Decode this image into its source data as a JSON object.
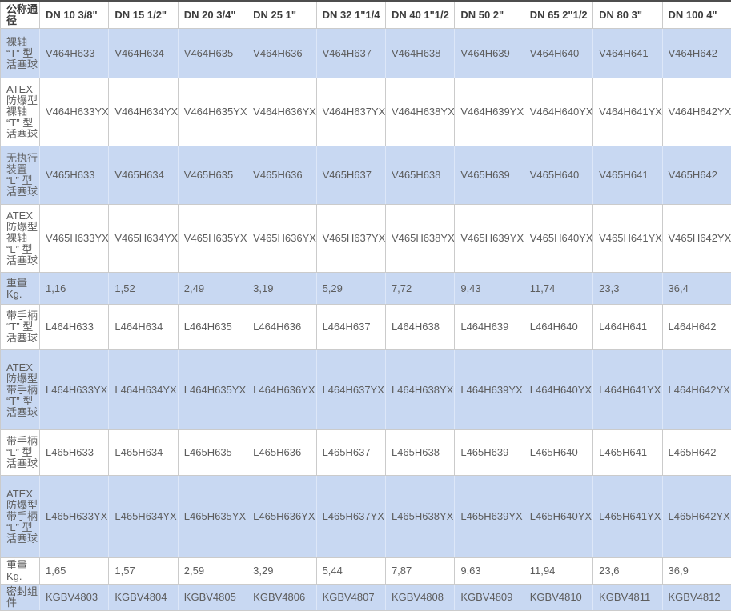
{
  "table": {
    "corner_header": "公称通径",
    "columns": [
      "DN 10 3/8\"",
      "DN 15  1/2\"",
      "DN 20  3/4\"",
      "DN 25 1\"",
      "DN 32 1\"1/4",
      "DN 40 1\"1/2",
      "DN 50  2\"",
      "DN 65 2\"1/2",
      "DN 80 3\"",
      "DN 100 4\""
    ],
    "rows": [
      {
        "label": "裸轴 “T” 型活塞球",
        "shaded": true,
        "values": [
          "V464H633",
          "V464H634",
          "V464H635",
          "V464H636",
          "V464H637",
          "V464H638",
          "V464H639",
          "V464H640",
          "V464H641",
          "V464H642"
        ]
      },
      {
        "label": "ATEX防爆型裸轴 “T” 型活塞球",
        "shaded": false,
        "values": [
          "V464H633YX",
          "V464H634YX",
          "V464H635YX",
          "V464H636YX",
          "V464H637YX",
          "V464H638YX",
          "V464H639YX",
          "V464H640YX",
          "V464H641YX",
          "V464H642YX"
        ]
      },
      {
        "label": "无执行装置 “L” 型活塞球",
        "shaded": true,
        "values": [
          "V465H633",
          "V465H634",
          "V465H635",
          "V465H636",
          "V465H637",
          "V465H638",
          "V465H639",
          "V465H640",
          "V465H641",
          "V465H642"
        ]
      },
      {
        "label": "ATEX防爆型裸轴 “L” 型活塞球",
        "shaded": false,
        "values": [
          "V465H633YX",
          "V465H634YX",
          "V465H635YX",
          "V465H636YX",
          "V465H637YX",
          "V465H638YX",
          "V465H639YX",
          "V465H640YX",
          "V465H641YX",
          "V465H642YX"
        ]
      },
      {
        "label": "重量 Kg.",
        "shaded": true,
        "values": [
          "1,16",
          "1,52",
          "2,49",
          "3,19",
          "5,29",
          "7,72",
          "9,43",
          "11,74",
          "23,3",
          "36,4"
        ]
      },
      {
        "label": "带手柄 “T” 型活塞球",
        "shaded": false,
        "values": [
          "L464H633",
          "L464H634",
          "L464H635",
          "L464H636",
          "L464H637",
          "L464H638",
          "L464H639",
          "L464H640",
          "L464H641",
          "L464H642"
        ]
      },
      {
        "label": "ATEX防爆型带手柄 “T” 型活塞球",
        "shaded": true,
        "values": [
          "L464H633YX",
          "L464H634YX",
          "L464H635YX",
          "L464H636YX",
          "L464H637YX",
          "L464H638YX",
          "L464H639YX",
          "L464H640YX",
          "L464H641YX",
          "L464H642YX"
        ]
      },
      {
        "label": "带手柄 “L” 型活塞球",
        "shaded": false,
        "values": [
          "L465H633",
          "L465H634",
          "L465H635",
          "L465H636",
          "L465H637",
          "L465H638",
          "L465H639",
          "L465H640",
          "L465H641",
          "L465H642"
        ]
      },
      {
        "label": "ATEX防爆型带手柄 “L” 型活塞球",
        "shaded": true,
        "values": [
          "L465H633YX",
          "L465H634YX",
          "L465H635YX",
          "L465H636YX",
          "L465H637YX",
          "L465H638YX",
          "L465H639YX",
          "L465H640YX",
          "L465H641YX",
          "L465H642YX"
        ]
      },
      {
        "label": "重量 Kg.",
        "shaded": false,
        "values": [
          "1,65",
          "1,57",
          "2,59",
          "3,29",
          "5,44",
          "7,87",
          "9,63",
          "11,94",
          "23,6",
          "36,9"
        ]
      },
      {
        "label": "密封组件",
        "shaded": true,
        "values": [
          "KGBV4803",
          "KGBV4804",
          "KGBV4805",
          "KGBV4806",
          "KGBV4807",
          "KGBV4808",
          "KGBV4809",
          "KGBV4810",
          "KGBV4811",
          "KGBV4812"
        ]
      }
    ],
    "colors": {
      "shaded_row_bg": "#c8d8f2",
      "border": "#cbcbcb",
      "top_bar": "#4e4e4e",
      "header_text": "#3d3d3d",
      "cell_text": "#5d5d5d"
    }
  }
}
